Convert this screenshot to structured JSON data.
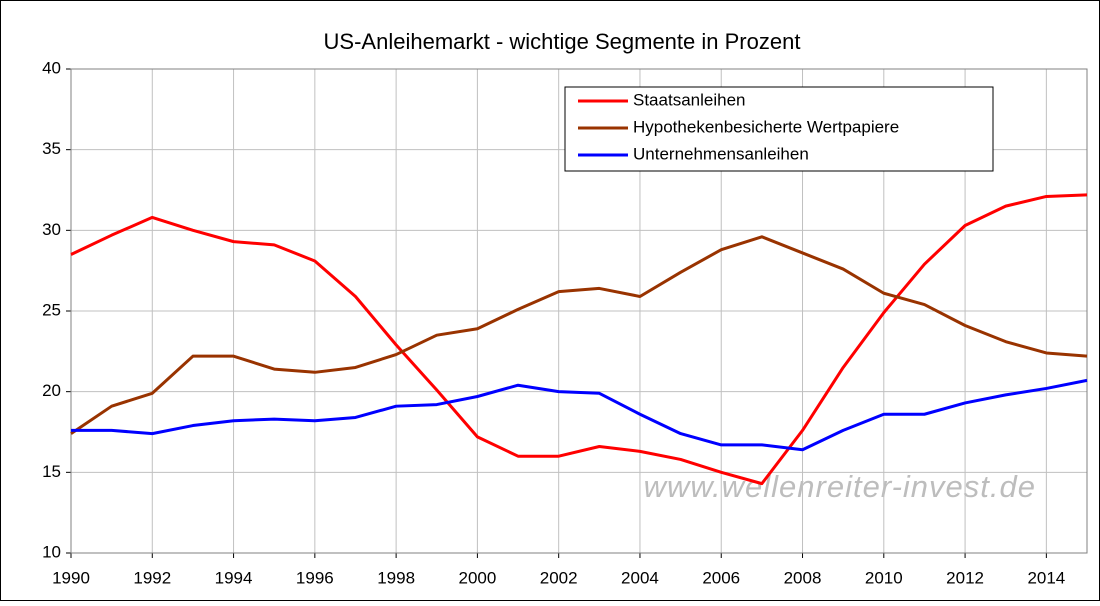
{
  "chart_data": {
    "type": "line",
    "title": "US-Anleihemarkt - wichtige Segmente in Prozent",
    "annotation": "www.wellenreiter-invest.de",
    "x": [
      1990,
      1991,
      1992,
      1993,
      1994,
      1995,
      1996,
      1997,
      1998,
      1999,
      2000,
      2001,
      2002,
      2003,
      2004,
      2005,
      2006,
      2007,
      2008,
      2009,
      2010,
      2011,
      2012,
      2013,
      2014,
      2015
    ],
    "series": [
      {
        "name": "Staatsanleihen",
        "color": "#ff0000",
        "values": [
          28.5,
          29.7,
          30.8,
          30.0,
          29.3,
          29.1,
          28.1,
          25.9,
          22.9,
          20.1,
          17.2,
          16.0,
          16.0,
          16.6,
          16.3,
          15.8,
          15.0,
          14.3,
          17.6,
          21.5,
          24.9,
          27.9,
          30.3,
          31.5,
          32.1,
          32.2
        ]
      },
      {
        "name": "Hypothekenbesicherte Wertpapiere",
        "color": "#993300",
        "values": [
          17.4,
          19.1,
          19.9,
          22.2,
          22.2,
          21.4,
          21.2,
          21.5,
          22.3,
          23.5,
          23.9,
          25.1,
          26.2,
          26.4,
          25.9,
          27.4,
          28.8,
          29.6,
          28.6,
          27.6,
          26.1,
          25.4,
          24.1,
          23.1,
          22.4,
          22.2
        ]
      },
      {
        "name": "Unternehmensanleihen",
        "color": "#0000ff",
        "values": [
          17.6,
          17.6,
          17.4,
          17.9,
          18.2,
          18.3,
          18.2,
          18.4,
          19.1,
          19.2,
          19.7,
          20.4,
          20.0,
          19.9,
          18.6,
          17.4,
          16.7,
          16.7,
          16.4,
          17.6,
          18.6,
          18.6,
          19.3,
          19.8,
          20.2,
          20.7
        ]
      }
    ],
    "xlim": [
      1990,
      2015
    ],
    "xticks": [
      1990,
      1992,
      1994,
      1996,
      1998,
      2000,
      2002,
      2004,
      2006,
      2008,
      2010,
      2012,
      2014
    ],
    "ylim": [
      10,
      40
    ],
    "yticks": [
      10,
      15,
      20,
      25,
      30,
      35,
      40
    ],
    "grid": true,
    "legend": "top-right"
  }
}
